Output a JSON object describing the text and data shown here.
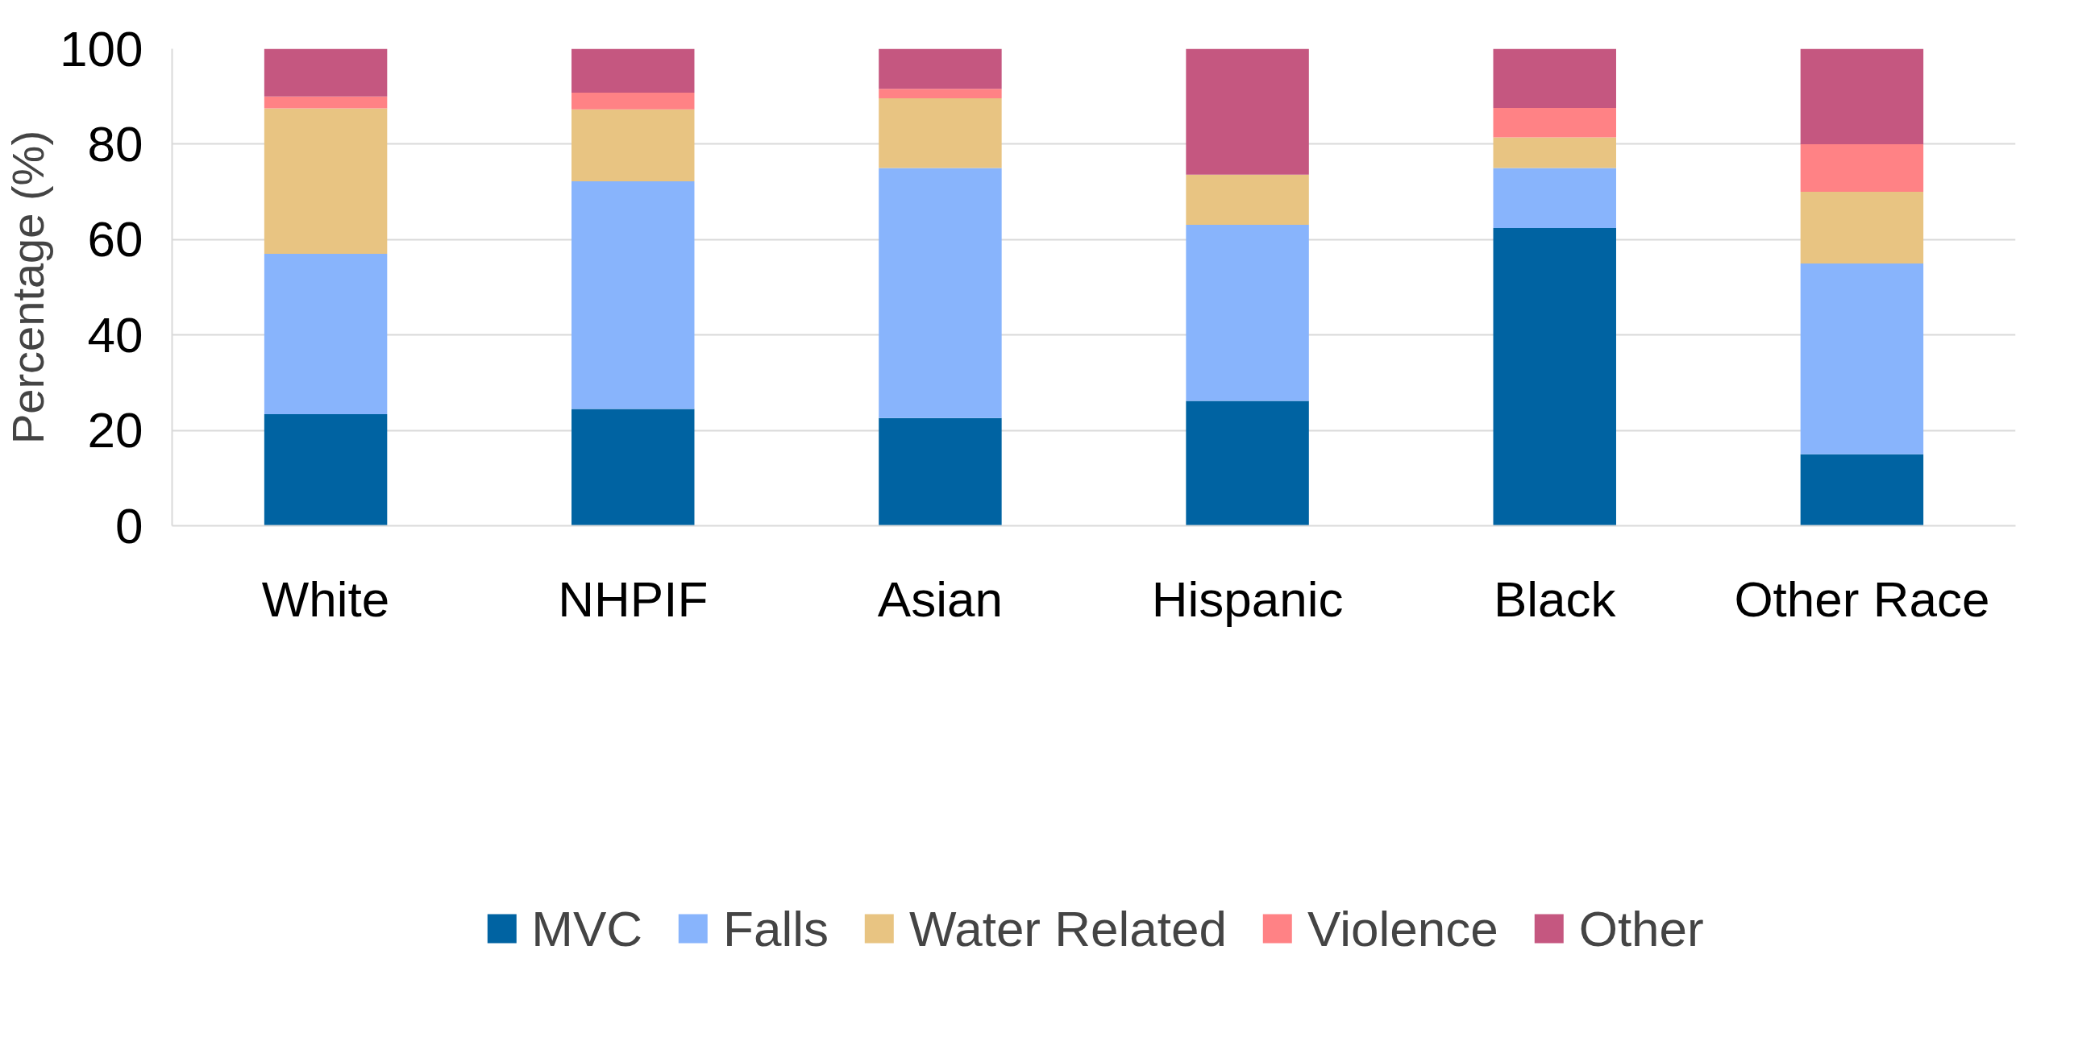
{
  "chart_data": {
    "type": "bar",
    "stacked": true,
    "ylabel": "Percentage (%)",
    "categories": [
      "White",
      "NHPIF",
      "Asian",
      "Hispanic",
      "Black",
      "Other Race"
    ],
    "series": [
      {
        "name": "MVC",
        "color": "#0063a2",
        "values": [
          23.4,
          24.5,
          22.6,
          26.2,
          62.4,
          15.0
        ]
      },
      {
        "name": "Falls",
        "color": "#88b4fc",
        "values": [
          33.6,
          47.7,
          52.4,
          36.9,
          12.6,
          40.0
        ]
      },
      {
        "name": "Water Related",
        "color": "#e8c482",
        "values": [
          30.5,
          15.1,
          14.6,
          10.5,
          6.4,
          15.0
        ]
      },
      {
        "name": "Violence",
        "color": "#ff8285",
        "values": [
          2.5,
          3.5,
          2.0,
          0,
          6.2,
          10.0
        ]
      },
      {
        "name": "Other",
        "color": "#c55780",
        "values": [
          10.0,
          9.2,
          8.4,
          26.4,
          12.4,
          20.0
        ]
      }
    ],
    "ylim": [
      0,
      100
    ],
    "yticks": [
      0,
      20,
      40,
      60,
      80,
      100
    ],
    "grid": "y",
    "legend": "bottom"
  }
}
